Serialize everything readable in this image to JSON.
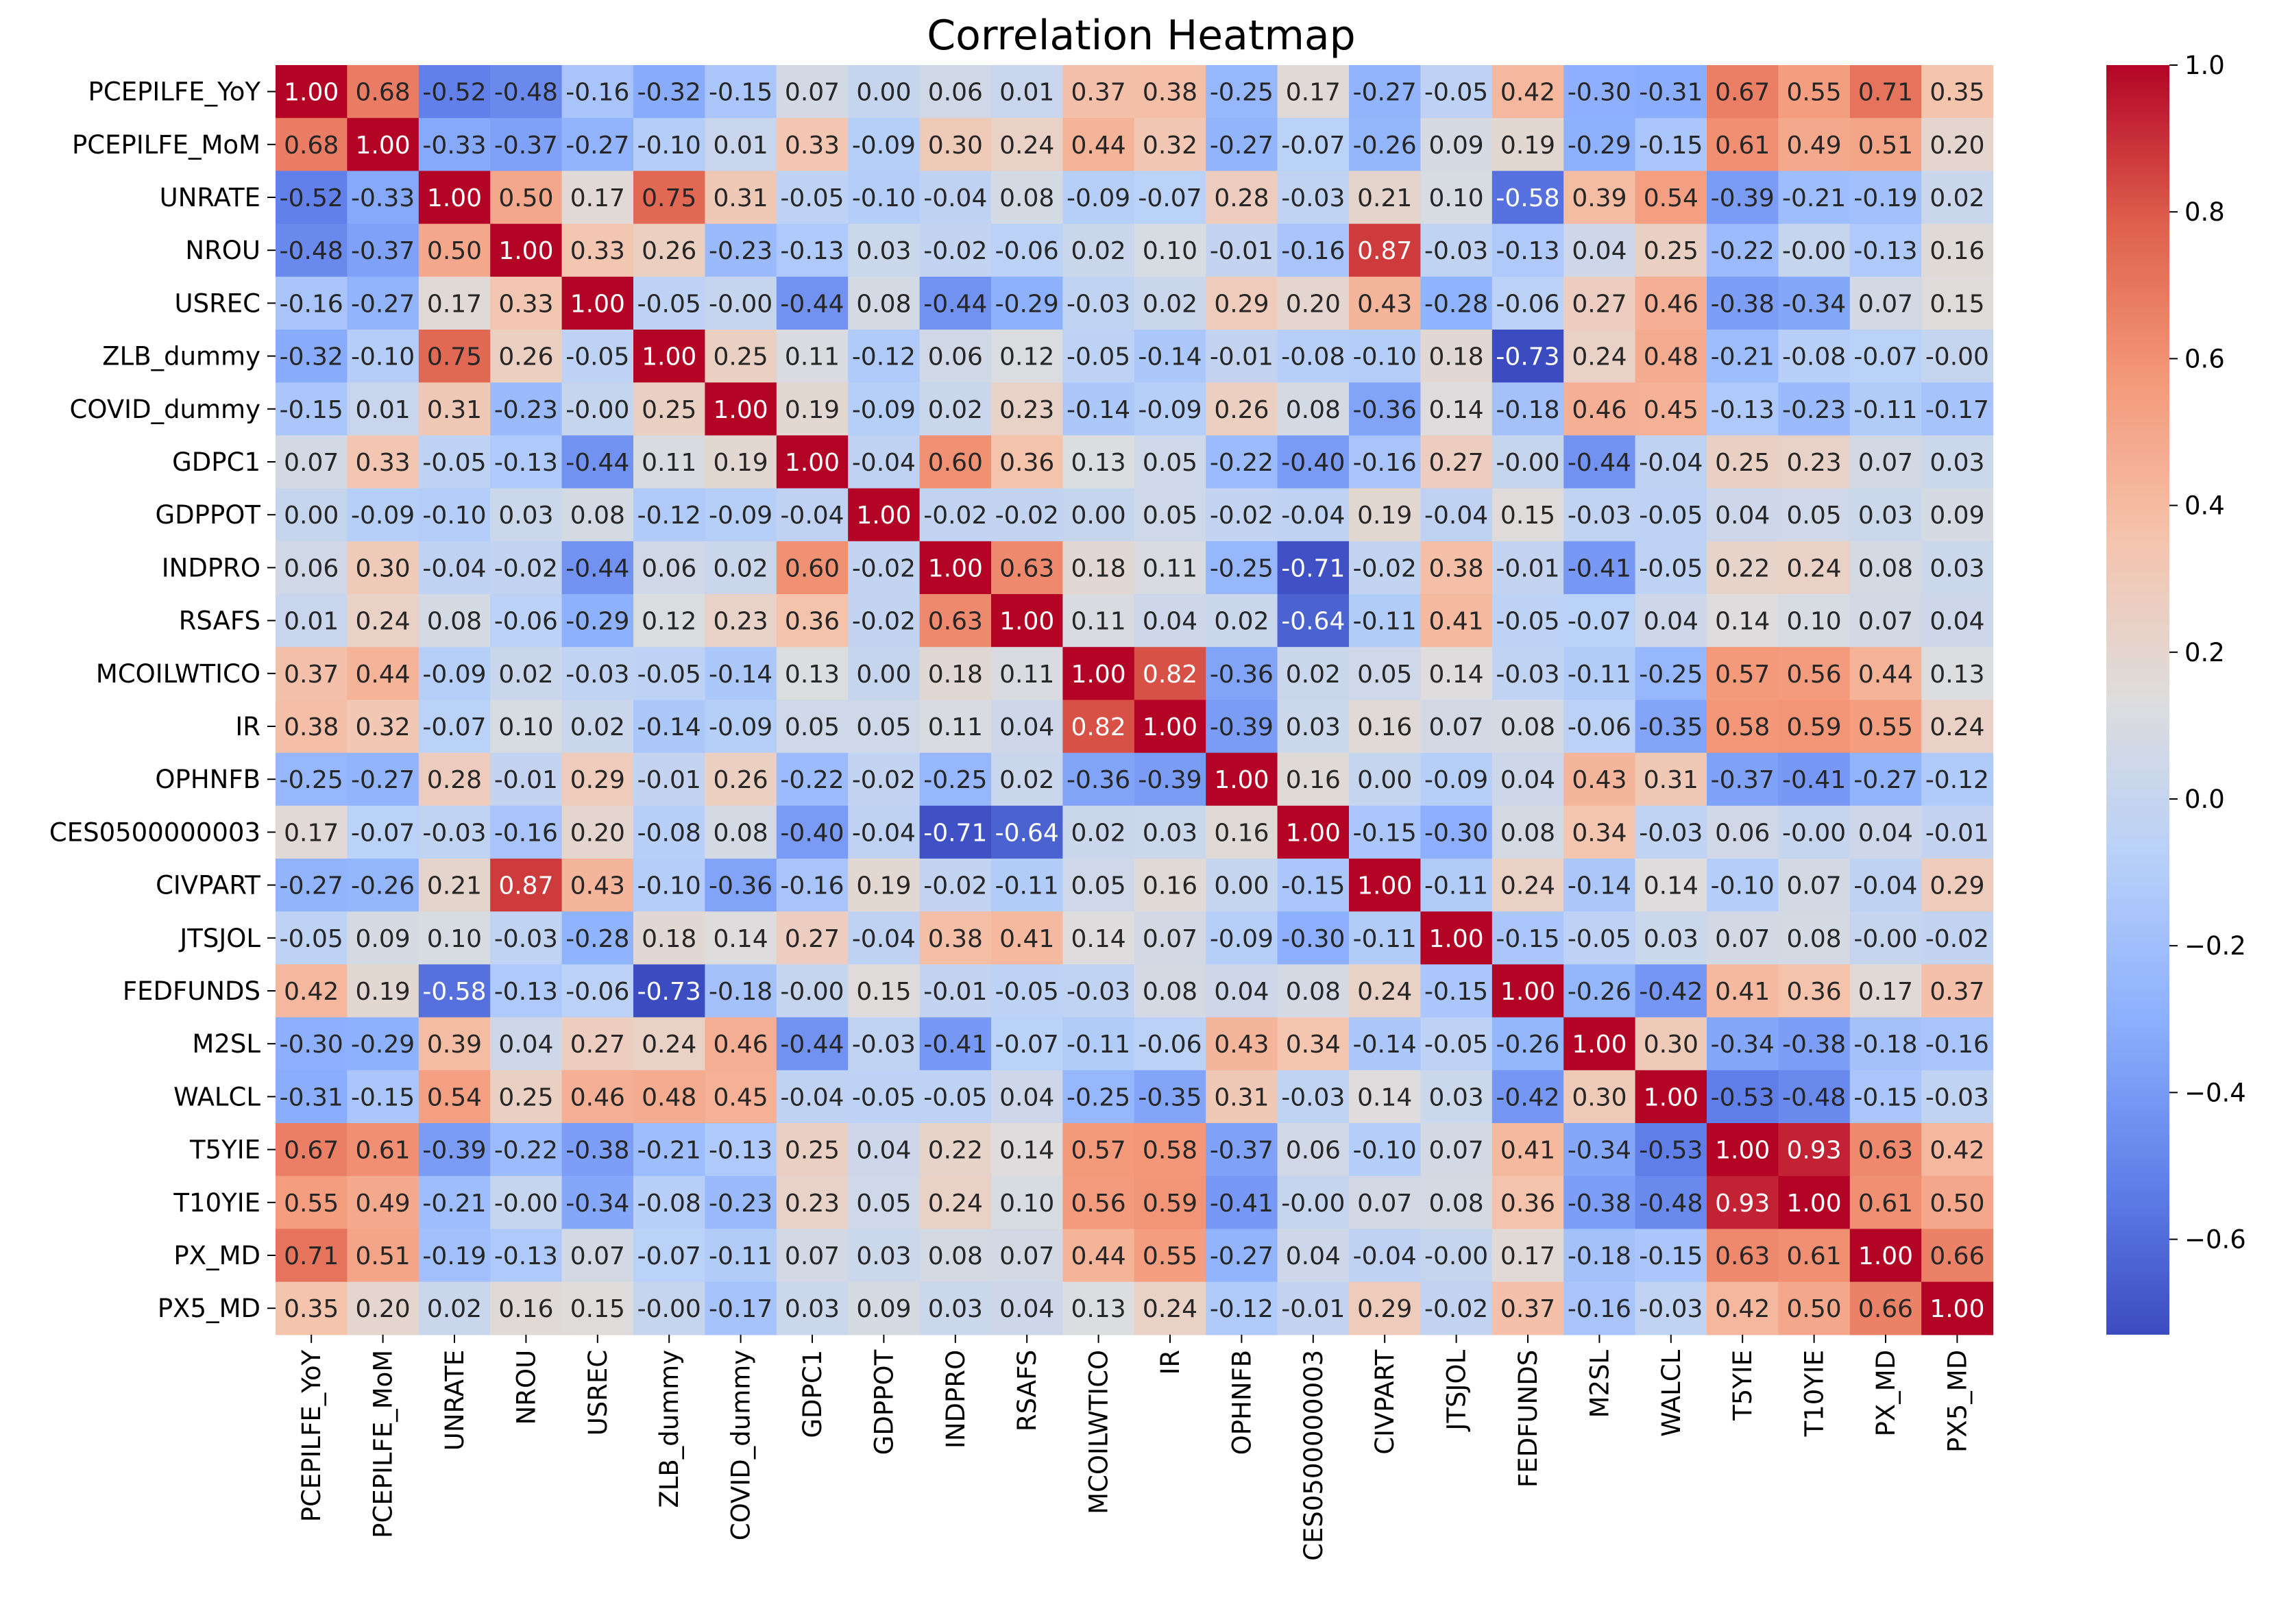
{
  "chart_data": {
    "type": "heatmap",
    "title": "Correlation Heatmap",
    "xlabel": "",
    "ylabel": "",
    "colormap": "coolwarm",
    "vmin": -0.73,
    "vmax": 1.0,
    "colorbar_ticks": [
      "1.0",
      "0.8",
      "0.6",
      "0.4",
      "0.2",
      "0.0",
      "−0.2",
      "−0.4",
      "−0.6"
    ],
    "colorbar_tick_values": [
      1.0,
      0.8,
      0.6,
      0.4,
      0.2,
      0.0,
      -0.2,
      -0.4,
      -0.6
    ],
    "categories": [
      "PCEPILFE_YoY",
      "PCEPILFE_MoM",
      "UNRATE",
      "NROU",
      "USREC",
      "ZLB_dummy",
      "COVID_dummy",
      "GDPC1",
      "GDPPOT",
      "INDPRO",
      "RSAFS",
      "MCOILWTICO",
      "IR",
      "OPHNFB",
      "CES0500000003",
      "CIVPART",
      "JTSJOL",
      "FEDFUNDS",
      "M2SL",
      "WALCL",
      "T5YIE",
      "T10YIE",
      "PX_MD",
      "PX5_MD"
    ],
    "matrix": [
      [
        1.0,
        0.68,
        -0.52,
        -0.48,
        -0.16,
        -0.32,
        -0.15,
        0.07,
        0.0,
        0.06,
        0.01,
        0.37,
        0.38,
        -0.25,
        0.17,
        -0.27,
        -0.05,
        0.42,
        -0.3,
        -0.31,
        0.67,
        0.55,
        0.71,
        0.35
      ],
      [
        0.68,
        1.0,
        -0.33,
        -0.37,
        -0.27,
        -0.1,
        0.01,
        0.33,
        -0.09,
        0.3,
        0.24,
        0.44,
        0.32,
        -0.27,
        -0.07,
        -0.26,
        0.09,
        0.19,
        -0.29,
        -0.15,
        0.61,
        0.49,
        0.51,
        0.2
      ],
      [
        -0.52,
        -0.33,
        1.0,
        0.5,
        0.17,
        0.75,
        0.31,
        -0.05,
        -0.1,
        -0.04,
        0.08,
        -0.09,
        -0.07,
        0.28,
        -0.03,
        0.21,
        0.1,
        -0.58,
        0.39,
        0.54,
        -0.39,
        -0.21,
        -0.19,
        0.02
      ],
      [
        -0.48,
        -0.37,
        0.5,
        1.0,
        0.33,
        0.26,
        -0.23,
        -0.13,
        0.03,
        -0.02,
        -0.06,
        0.02,
        0.1,
        -0.01,
        -0.16,
        0.87,
        -0.03,
        -0.13,
        0.04,
        0.25,
        -0.22,
        -0.0,
        -0.13,
        0.16
      ],
      [
        -0.16,
        -0.27,
        0.17,
        0.33,
        1.0,
        -0.05,
        -0.0,
        -0.44,
        0.08,
        -0.44,
        -0.29,
        -0.03,
        0.02,
        0.29,
        0.2,
        0.43,
        -0.28,
        -0.06,
        0.27,
        0.46,
        -0.38,
        -0.34,
        0.07,
        0.15
      ],
      [
        -0.32,
        -0.1,
        0.75,
        0.26,
        -0.05,
        1.0,
        0.25,
        0.11,
        -0.12,
        0.06,
        0.12,
        -0.05,
        -0.14,
        -0.01,
        -0.08,
        -0.1,
        0.18,
        -0.73,
        0.24,
        0.48,
        -0.21,
        -0.08,
        -0.07,
        -0.0
      ],
      [
        -0.15,
        0.01,
        0.31,
        -0.23,
        -0.0,
        0.25,
        1.0,
        0.19,
        -0.09,
        0.02,
        0.23,
        -0.14,
        -0.09,
        0.26,
        0.08,
        -0.36,
        0.14,
        -0.18,
        0.46,
        0.45,
        -0.13,
        -0.23,
        -0.11,
        -0.17
      ],
      [
        0.07,
        0.33,
        -0.05,
        -0.13,
        -0.44,
        0.11,
        0.19,
        1.0,
        -0.04,
        0.6,
        0.36,
        0.13,
        0.05,
        -0.22,
        -0.4,
        -0.16,
        0.27,
        -0.0,
        -0.44,
        -0.04,
        0.25,
        0.23,
        0.07,
        0.03
      ],
      [
        0.0,
        -0.09,
        -0.1,
        0.03,
        0.08,
        -0.12,
        -0.09,
        -0.04,
        1.0,
        -0.02,
        -0.02,
        0.0,
        0.05,
        -0.02,
        -0.04,
        0.19,
        -0.04,
        0.15,
        -0.03,
        -0.05,
        0.04,
        0.05,
        0.03,
        0.09
      ],
      [
        0.06,
        0.3,
        -0.04,
        -0.02,
        -0.44,
        0.06,
        0.02,
        0.6,
        -0.02,
        1.0,
        0.63,
        0.18,
        0.11,
        -0.25,
        -0.71,
        -0.02,
        0.38,
        -0.01,
        -0.41,
        -0.05,
        0.22,
        0.24,
        0.08,
        0.03
      ],
      [
        0.01,
        0.24,
        0.08,
        -0.06,
        -0.29,
        0.12,
        0.23,
        0.36,
        -0.02,
        0.63,
        1.0,
        0.11,
        0.04,
        0.02,
        -0.64,
        -0.11,
        0.41,
        -0.05,
        -0.07,
        0.04,
        0.14,
        0.1,
        0.07,
        0.04
      ],
      [
        0.37,
        0.44,
        -0.09,
        0.02,
        -0.03,
        -0.05,
        -0.14,
        0.13,
        0.0,
        0.18,
        0.11,
        1.0,
        0.82,
        -0.36,
        0.02,
        0.05,
        0.14,
        -0.03,
        -0.11,
        -0.25,
        0.57,
        0.56,
        0.44,
        0.13
      ],
      [
        0.38,
        0.32,
        -0.07,
        0.1,
        0.02,
        -0.14,
        -0.09,
        0.05,
        0.05,
        0.11,
        0.04,
        0.82,
        1.0,
        -0.39,
        0.03,
        0.16,
        0.07,
        0.08,
        -0.06,
        -0.35,
        0.58,
        0.59,
        0.55,
        0.24
      ],
      [
        -0.25,
        -0.27,
        0.28,
        -0.01,
        0.29,
        -0.01,
        0.26,
        -0.22,
        -0.02,
        -0.25,
        0.02,
        -0.36,
        -0.39,
        1.0,
        0.16,
        0.0,
        -0.09,
        0.04,
        0.43,
        0.31,
        -0.37,
        -0.41,
        -0.27,
        -0.12
      ],
      [
        0.17,
        -0.07,
        -0.03,
        -0.16,
        0.2,
        -0.08,
        0.08,
        -0.4,
        -0.04,
        -0.71,
        -0.64,
        0.02,
        0.03,
        0.16,
        1.0,
        -0.15,
        -0.3,
        0.08,
        0.34,
        -0.03,
        0.06,
        -0.0,
        0.04,
        -0.01
      ],
      [
        -0.27,
        -0.26,
        0.21,
        0.87,
        0.43,
        -0.1,
        -0.36,
        -0.16,
        0.19,
        -0.02,
        -0.11,
        0.05,
        0.16,
        0.0,
        -0.15,
        1.0,
        -0.11,
        0.24,
        -0.14,
        0.14,
        -0.1,
        0.07,
        -0.04,
        0.29
      ],
      [
        -0.05,
        0.09,
        0.1,
        -0.03,
        -0.28,
        0.18,
        0.14,
        0.27,
        -0.04,
        0.38,
        0.41,
        0.14,
        0.07,
        -0.09,
        -0.3,
        -0.11,
        1.0,
        -0.15,
        -0.05,
        0.03,
        0.07,
        0.08,
        -0.0,
        -0.02
      ],
      [
        0.42,
        0.19,
        -0.58,
        -0.13,
        -0.06,
        -0.73,
        -0.18,
        -0.0,
        0.15,
        -0.01,
        -0.05,
        -0.03,
        0.08,
        0.04,
        0.08,
        0.24,
        -0.15,
        1.0,
        -0.26,
        -0.42,
        0.41,
        0.36,
        0.17,
        0.37
      ],
      [
        -0.3,
        -0.29,
        0.39,
        0.04,
        0.27,
        0.24,
        0.46,
        -0.44,
        -0.03,
        -0.41,
        -0.07,
        -0.11,
        -0.06,
        0.43,
        0.34,
        -0.14,
        -0.05,
        -0.26,
        1.0,
        0.3,
        -0.34,
        -0.38,
        -0.18,
        -0.16
      ],
      [
        -0.31,
        -0.15,
        0.54,
        0.25,
        0.46,
        0.48,
        0.45,
        -0.04,
        -0.05,
        -0.05,
        0.04,
        -0.25,
        -0.35,
        0.31,
        -0.03,
        0.14,
        0.03,
        -0.42,
        0.3,
        1.0,
        -0.53,
        -0.48,
        -0.15,
        -0.03
      ],
      [
        0.67,
        0.61,
        -0.39,
        -0.22,
        -0.38,
        -0.21,
        -0.13,
        0.25,
        0.04,
        0.22,
        0.14,
        0.57,
        0.58,
        -0.37,
        0.06,
        -0.1,
        0.07,
        0.41,
        -0.34,
        -0.53,
        1.0,
        0.93,
        0.63,
        0.42
      ],
      [
        0.55,
        0.49,
        -0.21,
        -0.0,
        -0.34,
        -0.08,
        -0.23,
        0.23,
        0.05,
        0.24,
        0.1,
        0.56,
        0.59,
        -0.41,
        -0.0,
        0.07,
        0.08,
        0.36,
        -0.38,
        -0.48,
        0.93,
        1.0,
        0.61,
        0.5
      ],
      [
        0.71,
        0.51,
        -0.19,
        -0.13,
        0.07,
        -0.07,
        -0.11,
        0.07,
        0.03,
        0.08,
        0.07,
        0.44,
        0.55,
        -0.27,
        0.04,
        -0.04,
        -0.0,
        0.17,
        -0.18,
        -0.15,
        0.63,
        0.61,
        1.0,
        0.66
      ],
      [
        0.35,
        0.2,
        0.02,
        0.16,
        0.15,
        -0.0,
        -0.17,
        0.03,
        0.09,
        0.03,
        0.04,
        0.13,
        0.24,
        -0.12,
        -0.01,
        0.29,
        -0.02,
        0.37,
        -0.16,
        -0.03,
        0.42,
        0.5,
        0.66,
        1.0
      ]
    ]
  }
}
